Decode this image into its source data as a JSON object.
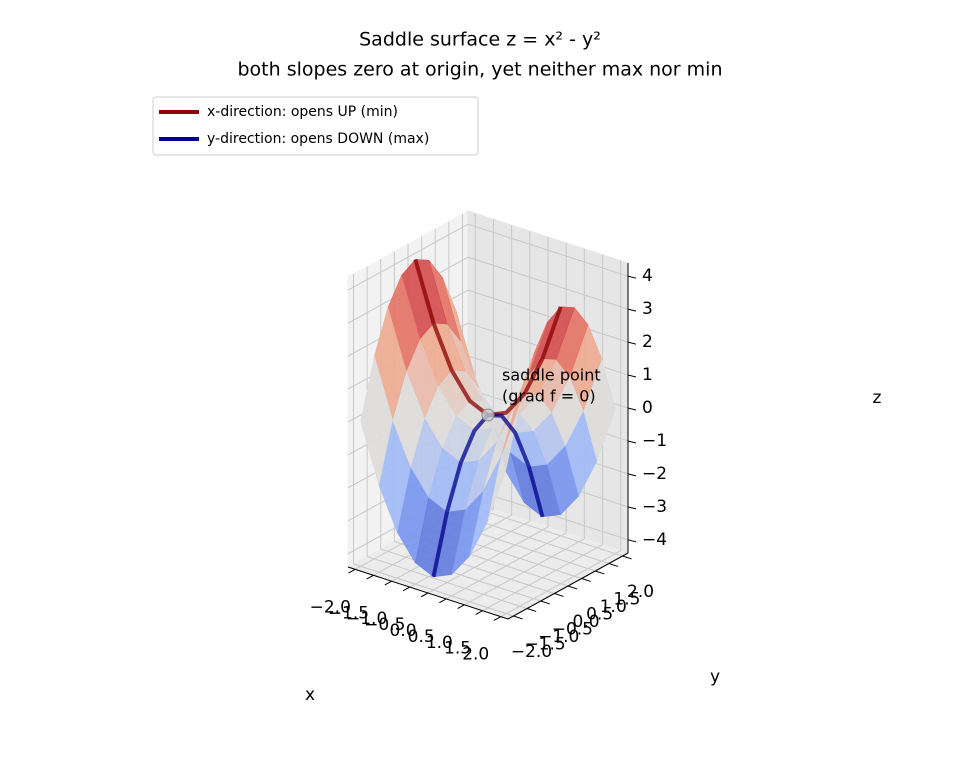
{
  "chart_data": {
    "type": "surface",
    "title": "Saddle surface  z = x² - y²",
    "subtitle": "both slopes zero at origin, yet neither max nor min",
    "xlabel": "x",
    "ylabel": "y",
    "zlabel": "z",
    "xlim": [
      -2.2,
      2.2
    ],
    "ylim": [
      -2.2,
      2.2
    ],
    "zlim": [
      -4.4,
      4.4
    ],
    "xticks": [
      {
        "value": -2,
        "label": "−2.0"
      },
      {
        "value": -1.5,
        "label": "−1.5"
      },
      {
        "value": -1,
        "label": "−1.0"
      },
      {
        "value": -0.5,
        "label": "−0.5"
      },
      {
        "value": 0,
        "label": "0.0"
      },
      {
        "value": 0.5,
        "label": "0.5"
      },
      {
        "value": 1,
        "label": "1.0"
      },
      {
        "value": 1.5,
        "label": "1.5"
      },
      {
        "value": 2,
        "label": "2.0"
      }
    ],
    "yticks": [
      {
        "value": -2,
        "label": "−2.0"
      },
      {
        "value": -1.5,
        "label": "−1.5"
      },
      {
        "value": -1,
        "label": "−1.0"
      },
      {
        "value": -0.5,
        "label": "−0.5"
      },
      {
        "value": 0,
        "label": "0.0"
      },
      {
        "value": 0.5,
        "label": "0.5"
      },
      {
        "value": 1,
        "label": "1.0"
      },
      {
        "value": 1.5,
        "label": "1.5"
      },
      {
        "value": 2,
        "label": "2.0"
      }
    ],
    "zticks": [
      {
        "value": -4,
        "label": "−4"
      },
      {
        "value": -3,
        "label": "−3"
      },
      {
        "value": -2,
        "label": "−2"
      },
      {
        "value": -1,
        "label": "−1"
      },
      0,
      1,
      2,
      3,
      4
    ],
    "grid": true,
    "colormap": "coolwarm",
    "surface": {
      "x": [
        -2,
        -1.5,
        -1,
        -0.5,
        0,
        0.5,
        1,
        1.5,
        2
      ],
      "y": [
        -2,
        -1.5,
        -1,
        -0.5,
        0,
        0.5,
        1,
        1.5,
        2
      ],
      "z": [
        [
          0,
          1.75,
          3,
          3.75,
          4,
          3.75,
          3,
          1.75,
          0
        ],
        [
          -1.75,
          0,
          1.25,
          2,
          2.25,
          2,
          1.25,
          0,
          -1.75
        ],
        [
          -3,
          -1.25,
          0,
          0.75,
          1,
          0.75,
          0,
          -1.25,
          -3
        ],
        [
          -3.75,
          -2,
          -0.75,
          0,
          0.25,
          0,
          -0.75,
          -2,
          -3.75
        ],
        [
          -4,
          -2.25,
          -1,
          -0.25,
          0,
          -0.25,
          -1,
          -2.25,
          -4
        ],
        [
          -3.75,
          -2,
          -0.75,
          0,
          0.25,
          0,
          -0.75,
          -2,
          -3.75
        ],
        [
          -3,
          -1.25,
          0,
          0.75,
          1,
          0.75,
          0,
          -1.25,
          -3
        ],
        [
          -1.75,
          0,
          1.25,
          2,
          2.25,
          2,
          1.25,
          0,
          -1.75
        ],
        [
          0,
          1.75,
          3,
          3.75,
          4,
          3.75,
          3,
          1.75,
          0
        ]
      ]
    },
    "series": [
      {
        "name": "x-direction: opens UP (min)",
        "color": "#8b0000",
        "x": [
          -2,
          -1.5,
          -1,
          -0.5,
          0,
          0.5,
          1,
          1.5,
          2
        ],
        "y": [
          0,
          0,
          0,
          0,
          0,
          0,
          0,
          0,
          0
        ],
        "values": [
          4,
          2.25,
          1,
          0.25,
          0,
          0.25,
          1,
          2.25,
          4
        ]
      },
      {
        "name": "y-direction: opens DOWN (max)",
        "color": "#00008b",
        "x": [
          0,
          0,
          0,
          0,
          0,
          0,
          0,
          0,
          0
        ],
        "y": [
          -2,
          -1.5,
          -1,
          -0.5,
          0,
          0.5,
          1,
          1.5,
          2
        ],
        "values": [
          -4,
          -2.25,
          -1,
          -0.25,
          0,
          -0.25,
          -1,
          -2.25,
          -4
        ]
      }
    ],
    "annotation": {
      "text": [
        "saddle point",
        "(grad f = 0)"
      ],
      "x": 0,
      "y": 0,
      "z": 0
    },
    "legend": "upper left"
  }
}
